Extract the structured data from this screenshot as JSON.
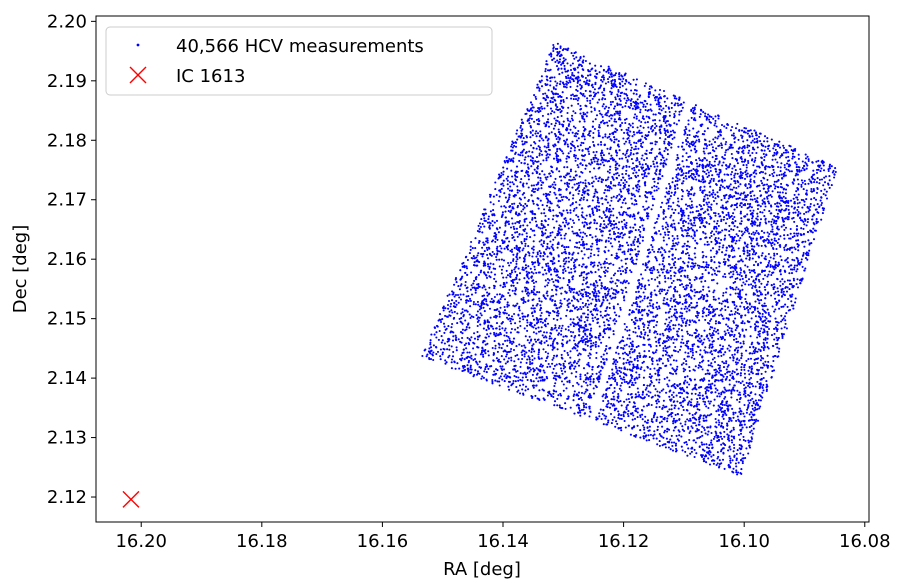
{
  "chart_data": {
    "type": "scatter",
    "title": "",
    "xlabel": "RA [deg]",
    "ylabel": "Dec [deg]",
    "xlim": [
      16.2075,
      16.0793
    ],
    "ylim": [
      2.1158,
      2.2009
    ],
    "x_inverted": true,
    "xticks": [
      16.2,
      16.18,
      16.16,
      16.14,
      16.12,
      16.1,
      16.08
    ],
    "xtick_labels": [
      "16.20",
      "16.18",
      "16.16",
      "16.14",
      "16.12",
      "16.10",
      "16.08"
    ],
    "yticks": [
      2.12,
      2.13,
      2.14,
      2.15,
      2.16,
      2.17,
      2.18,
      2.19,
      2.2
    ],
    "ytick_labels": [
      "2.12",
      "2.13",
      "2.14",
      "2.15",
      "2.16",
      "2.17",
      "2.18",
      "2.19",
      "2.20"
    ],
    "grid": false,
    "legend_position": "top-left",
    "series": [
      {
        "name": "40,566 HCV measurements",
        "marker": "point",
        "color": "#0000ff",
        "count": 40566,
        "footprint": {
          "corners_ra_dec": [
            [
              16.1535,
              2.1435
            ],
            [
              16.1315,
              2.1965
            ],
            [
              16.0845,
              2.1755
            ],
            [
              16.1005,
              2.1235
            ]
          ],
          "chip_gap": {
            "from": [
              16.1095,
              2.1855
            ],
            "to": [
              16.1245,
              2.1355
            ]
          },
          "description": "Two-chip rotated detector footprint of densely scattered points"
        }
      },
      {
        "name": "IC 1613",
        "marker": "x",
        "color": "#ff0000",
        "x": [
          16.2017
        ],
        "y": [
          2.1196
        ]
      }
    ]
  }
}
